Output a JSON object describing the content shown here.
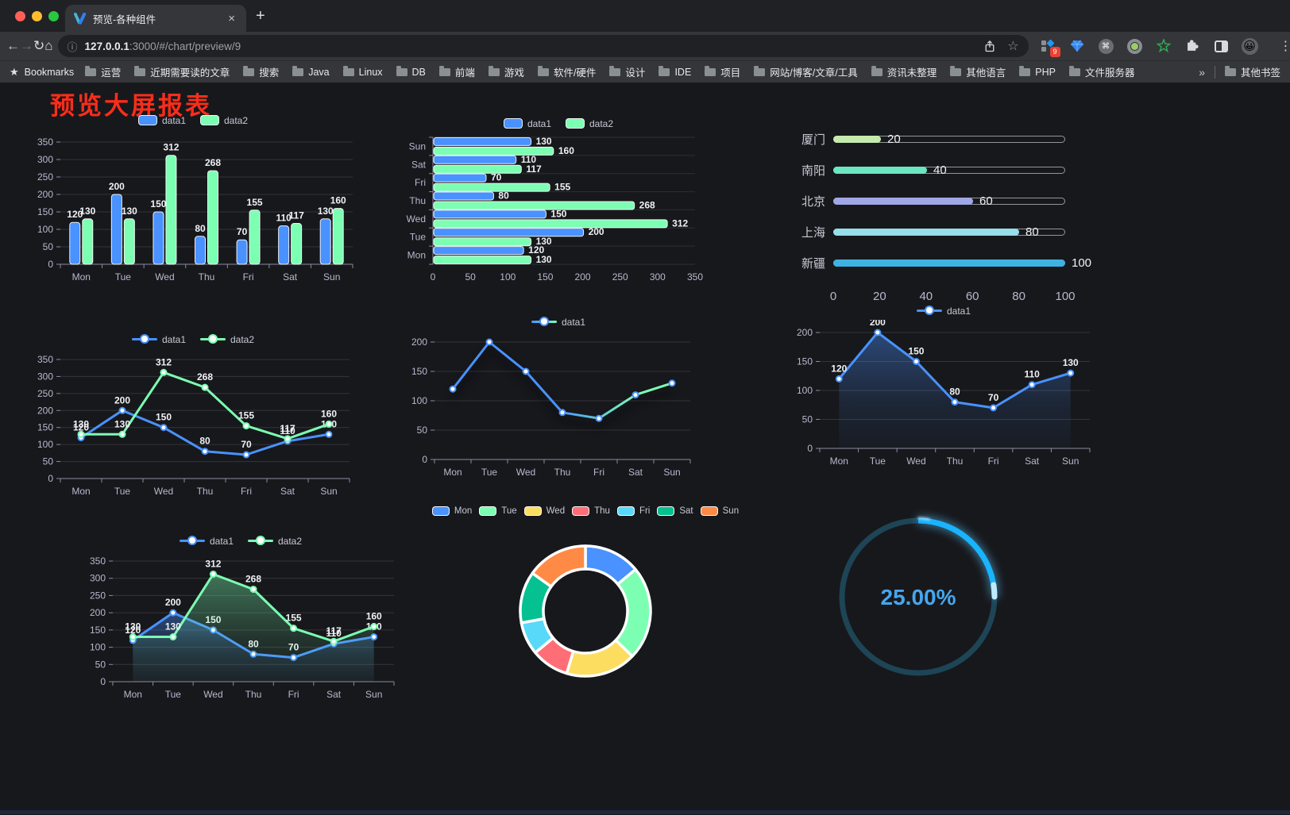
{
  "browser": {
    "tab_title": "预览-各种组件",
    "url_host": "127.0.0.1",
    "url_rest": ":3000/#/chart/preview/9",
    "extension_badge": "9",
    "bookmarks_label": "Bookmarks",
    "bookmarks": [
      "运营",
      "近期需要读的文章",
      "搜索",
      "Java",
      "Linux",
      "DB",
      "前端",
      "游戏",
      "软件/硬件",
      "设计",
      "IDE",
      "项目",
      "网站/博客/文章/工具",
      "资讯未整理",
      "其他语言",
      "PHP",
      "文件服务器"
    ],
    "other_bookmarks": "其他书签"
  },
  "icons": {
    "back": "←",
    "forward": "→",
    "reload": "↻",
    "home": "⌂",
    "info": "ⓘ",
    "star": "☆",
    "bookmark_star": "★",
    "kebab": "⋮",
    "plus": "+",
    "close": "×",
    "command": "⌘",
    "avatar": "😀",
    "overflow": "»"
  },
  "page": {
    "title": "预览大屏报表",
    "title_color": "#fb2d1a"
  },
  "chart_data": [
    {
      "id": "bar-grouped",
      "type": "bar",
      "categories": [
        "Mon",
        "Tue",
        "Wed",
        "Thu",
        "Fri",
        "Sat",
        "Sun"
      ],
      "series": [
        {
          "name": "data1",
          "color": "#4992ff",
          "values": [
            120,
            200,
            150,
            80,
            70,
            110,
            130
          ]
        },
        {
          "name": "data2",
          "color": "#7cffb2",
          "values": [
            130,
            130,
            312,
            268,
            155,
            117,
            160
          ]
        }
      ],
      "ylim": [
        0,
        350
      ],
      "ystep": 50,
      "grid": true,
      "value_labels": true,
      "legend_position": "top"
    },
    {
      "id": "bar-horizontal",
      "type": "bar-horizontal",
      "categories": [
        "Mon",
        "Tue",
        "Wed",
        "Thu",
        "Fri",
        "Sat",
        "Sun"
      ],
      "series": [
        {
          "name": "data1",
          "color": "#4992ff",
          "values": [
            120,
            200,
            150,
            80,
            70,
            110,
            130
          ]
        },
        {
          "name": "data2",
          "color": "#7cffb2",
          "values": [
            130,
            130,
            312,
            268,
            155,
            117,
            160
          ]
        }
      ],
      "xlim": [
        0,
        350
      ],
      "xstep": 50,
      "grid": true,
      "value_labels": true,
      "legend_position": "top"
    },
    {
      "id": "city-progress",
      "type": "progress",
      "items": [
        {
          "label": "厦门",
          "value": 20,
          "color": "#c4ebad"
        },
        {
          "label": "南阳",
          "value": 40,
          "color": "#6be6c1"
        },
        {
          "label": "北京",
          "value": 60,
          "color": "#a0a7e6"
        },
        {
          "label": "上海",
          "value": 80,
          "color": "#96dee8"
        },
        {
          "label": "新疆",
          "value": 100,
          "color": "#3fb1e3"
        }
      ],
      "xlim": [
        0,
        100
      ],
      "xticks": [
        0,
        20,
        40,
        60,
        80,
        100
      ]
    },
    {
      "id": "line-grouped",
      "type": "line",
      "categories": [
        "Mon",
        "Tue",
        "Wed",
        "Thu",
        "Fri",
        "Sat",
        "Sun"
      ],
      "series": [
        {
          "name": "data1",
          "color": "#4992ff",
          "values": [
            120,
            200,
            150,
            80,
            70,
            110,
            130
          ]
        },
        {
          "name": "data2",
          "color": "#7cffb2",
          "values": [
            130,
            130,
            312,
            268,
            155,
            117,
            160
          ]
        }
      ],
      "ylim": [
        0,
        350
      ],
      "ystep": 50,
      "grid": true,
      "value_labels": true,
      "legend_position": "top"
    },
    {
      "id": "line-gradient",
      "type": "line",
      "categories": [
        "Mon",
        "Tue",
        "Wed",
        "Thu",
        "Fri",
        "Sat",
        "Sun"
      ],
      "series": [
        {
          "name": "data1",
          "color": "#4992ff",
          "gradient": [
            "#4992ff",
            "#7cffb2"
          ],
          "shadow": true,
          "values": [
            120,
            200,
            150,
            80,
            70,
            110,
            130
          ]
        }
      ],
      "ylim": [
        0,
        200
      ],
      "ystep": 50,
      "grid": true,
      "value_labels": false,
      "legend_position": "top"
    },
    {
      "id": "area-single",
      "type": "line",
      "categories": [
        "Mon",
        "Tue",
        "Wed",
        "Thu",
        "Fri",
        "Sat",
        "Sun"
      ],
      "series": [
        {
          "name": "data1",
          "color": "#4992ff",
          "area": true,
          "values": [
            120,
            200,
            150,
            80,
            70,
            110,
            130
          ]
        }
      ],
      "ylim": [
        0,
        200
      ],
      "ystep": 50,
      "grid": true,
      "value_labels": true,
      "legend_position": "top"
    },
    {
      "id": "area-grouped",
      "type": "line",
      "categories": [
        "Mon",
        "Tue",
        "Wed",
        "Thu",
        "Fri",
        "Sat",
        "Sun"
      ],
      "series": [
        {
          "name": "data1",
          "color": "#4992ff",
          "area": true,
          "values": [
            120,
            200,
            150,
            80,
            70,
            110,
            130
          ]
        },
        {
          "name": "data2",
          "color": "#7cffb2",
          "area": true,
          "values": [
            130,
            130,
            312,
            268,
            155,
            117,
            160
          ]
        }
      ],
      "ylim": [
        0,
        350
      ],
      "ystep": 50,
      "grid": true,
      "value_labels": true,
      "legend_position": "top"
    },
    {
      "id": "weekday-donut",
      "type": "pie",
      "categories": [
        "Mon",
        "Tue",
        "Wed",
        "Thu",
        "Fri",
        "Sat",
        "Sun"
      ],
      "values": [
        120,
        200,
        150,
        80,
        70,
        110,
        130
      ],
      "colors": [
        "#4992ff",
        "#7cffb2",
        "#fddd60",
        "#ff6e76",
        "#58d9f9",
        "#05c091",
        "#ff8a45"
      ],
      "legend_position": "top"
    },
    {
      "id": "percent-gauge",
      "type": "gauge",
      "value": 25,
      "max": 100,
      "label": "25.00%",
      "track_color": "#1d4556",
      "bar_color": "#18b4fd",
      "cap_color": "#bfe9ff",
      "text_color": "#46a6ee"
    }
  ]
}
